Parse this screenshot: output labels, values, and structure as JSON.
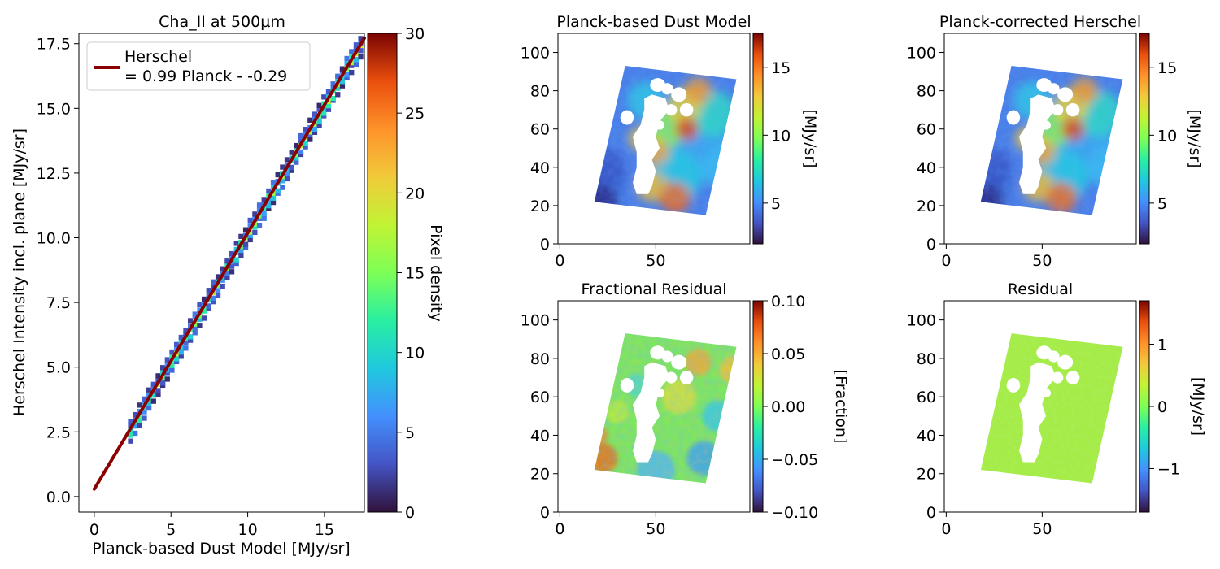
{
  "chart_data": [
    {
      "type": "heatmap",
      "panel": "density",
      "title": "Cha_II at 500µm",
      "xlabel": "Planck-based Dust Model [MJy/sr]",
      "ylabel": "Herschel Intensity incl. plane [MJy/sr]",
      "xlim": [
        -1,
        17.6
      ],
      "ylim": [
        -0.6,
        17.9
      ],
      "xticks": [
        0,
        5,
        10,
        15
      ],
      "xtick_labels": [
        "0",
        "5",
        "10",
        "15"
      ],
      "yticks": [
        0,
        2.5,
        5,
        7.5,
        10,
        12.5,
        15,
        17.5
      ],
      "ytick_labels": [
        "0.0",
        "2.5",
        "5.0",
        "7.5",
        "10.0",
        "12.5",
        "15.0",
        "17.5"
      ],
      "data_range": [
        2.2,
        17.5
      ],
      "fit": {
        "slope": 0.99,
        "intercept": 0.29,
        "x_range": [
          0,
          17.6
        ],
        "color": "#8b0000"
      },
      "legend": {
        "position": "top-left",
        "line1": "Herschel",
        "line2": "= 0.99 Planck - -0.29"
      },
      "colorbar": {
        "label": "Pixel density",
        "min": 0,
        "max": 30,
        "ticks": [
          0,
          5,
          10,
          15,
          20,
          25,
          30
        ],
        "tick_labels": [
          "0",
          "5",
          "10",
          "15",
          "20",
          "25",
          "30"
        ],
        "colormap": "turbo"
      },
      "grid": false
    },
    {
      "type": "heatmap",
      "panel": "dust_model",
      "title": "Planck-based Dust Model",
      "xlim": [
        -1,
        99
      ],
      "ylim": [
        0,
        110
      ],
      "xticks": [
        0,
        50
      ],
      "xtick_labels": [
        "0",
        "50"
      ],
      "yticks": [
        0,
        20,
        40,
        60,
        80,
        100
      ],
      "ytick_labels": [
        "0",
        "20",
        "40",
        "60",
        "80",
        "100"
      ],
      "colorbar": {
        "label": "[MJy/sr]",
        "min": 2,
        "max": 17.5,
        "ticks": [
          5,
          10,
          15
        ],
        "tick_labels": [
          "5",
          "10",
          "15"
        ],
        "colormap": "turbo"
      },
      "grid": false
    },
    {
      "type": "heatmap",
      "panel": "corrected_herschel",
      "title": "Planck-corrected Herschel",
      "xlim": [
        -1,
        99
      ],
      "ylim": [
        0,
        110
      ],
      "xticks": [
        0,
        50
      ],
      "xtick_labels": [
        "0",
        "50"
      ],
      "yticks": [
        0,
        20,
        40,
        60,
        80,
        100
      ],
      "ytick_labels": [
        "0",
        "20",
        "40",
        "60",
        "80",
        "100"
      ],
      "colorbar": {
        "label": "[MJy/sr]",
        "min": 2,
        "max": 17.5,
        "ticks": [
          5,
          10,
          15
        ],
        "tick_labels": [
          "5",
          "10",
          "15"
        ],
        "colormap": "turbo"
      },
      "grid": false
    },
    {
      "type": "heatmap",
      "panel": "fractional_residual",
      "title": "Fractional Residual",
      "xlim": [
        -1,
        99
      ],
      "ylim": [
        0,
        110
      ],
      "xticks": [
        0,
        50
      ],
      "xtick_labels": [
        "0",
        "50"
      ],
      "yticks": [
        0,
        20,
        40,
        60,
        80,
        100
      ],
      "ytick_labels": [
        "0",
        "20",
        "40",
        "60",
        "80",
        "100"
      ],
      "colorbar": {
        "label": "[Fraction]",
        "min": -0.1,
        "max": 0.1,
        "ticks": [
          -0.1,
          -0.05,
          0,
          0.05,
          0.1
        ],
        "tick_labels": [
          "−0.10",
          "−0.05",
          "0.00",
          "0.05",
          "0.10"
        ],
        "colormap": "turbo"
      },
      "grid": false
    },
    {
      "type": "heatmap",
      "panel": "residual",
      "title": "Residual",
      "xlim": [
        -1,
        99
      ],
      "ylim": [
        0,
        110
      ],
      "xticks": [
        0,
        50
      ],
      "xtick_labels": [
        "0",
        "50"
      ],
      "yticks": [
        0,
        20,
        40,
        60,
        80,
        100
      ],
      "ytick_labels": [
        "0",
        "20",
        "40",
        "60",
        "80",
        "100"
      ],
      "colorbar": {
        "label": "[MJy/sr]",
        "min": -1.7,
        "max": 1.7,
        "ticks": [
          -1,
          0,
          1
        ],
        "tick_labels": [
          "−1",
          "0",
          "1"
        ],
        "colormap": "turbo"
      },
      "grid": false
    }
  ]
}
